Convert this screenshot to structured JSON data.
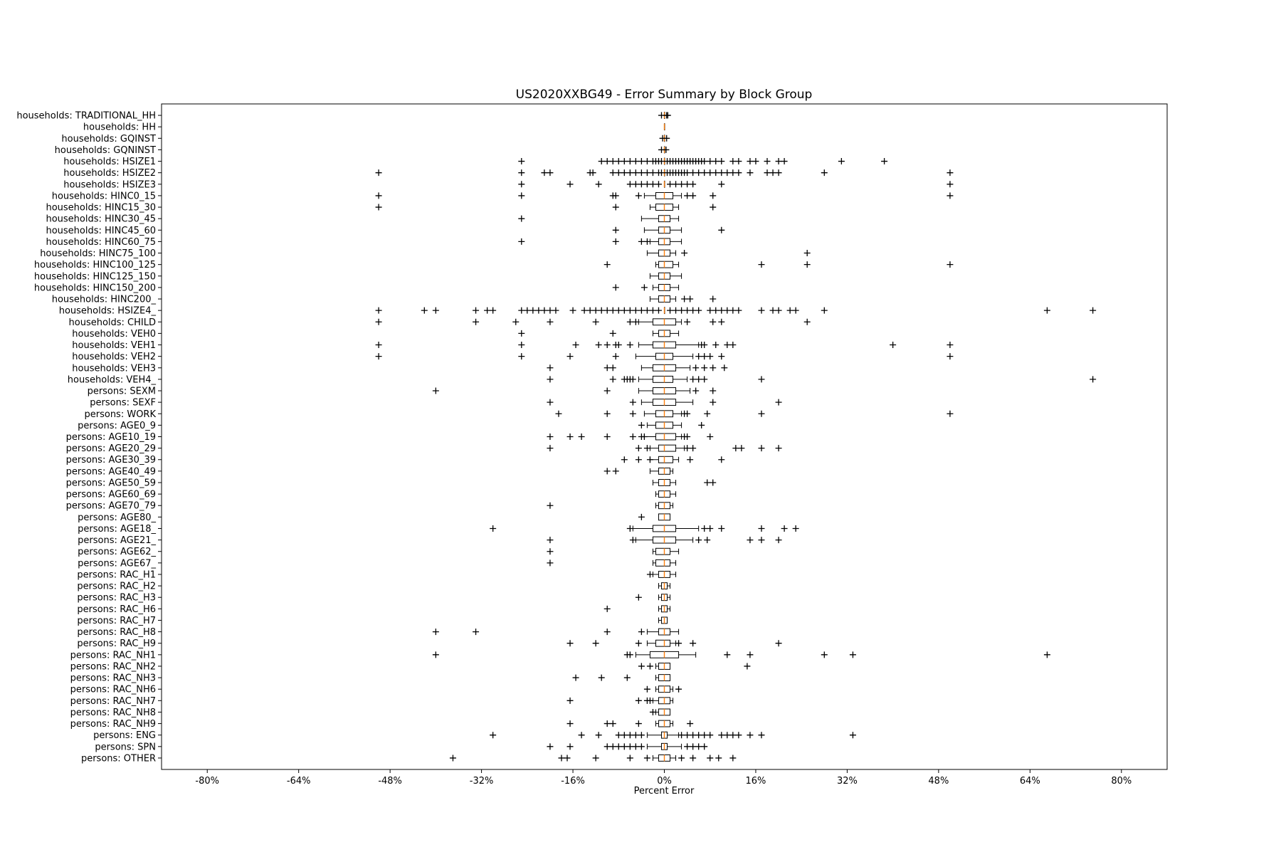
{
  "chart_data": {
    "type": "box",
    "title": "US2020XXBG49 - Error Summary by Block Group",
    "xlabel": "Percent Error",
    "ylabel": "",
    "xlim": [
      -88,
      88
    ],
    "xticks": [
      -80,
      -64,
      -48,
      -32,
      -16,
      0,
      16,
      32,
      48,
      64,
      80
    ],
    "xtick_labels": [
      "-80%",
      "-64%",
      "-48%",
      "-32%",
      "-16%",
      "0%",
      "16%",
      "32%",
      "48%",
      "64%",
      "80%"
    ],
    "grid": false,
    "median_color": "#ff7f0e",
    "categories": [
      "households: TRADITIONAL_HH",
      "households: HH",
      "households: GQINST",
      "households: GQNINST",
      "households: HSIZE1",
      "households: HSIZE2",
      "households: HSIZE3",
      "households: HINC0_15",
      "households: HINC15_30",
      "households: HINC30_45",
      "households: HINC45_60",
      "households: HINC60_75",
      "households: HINC75_100",
      "households: HINC100_125",
      "households: HINC125_150",
      "households: HINC150_200",
      "households: HINC200_",
      "households: HSIZE4_",
      "households: CHILD",
      "households: VEH0",
      "households: VEH1",
      "households: VEH2",
      "households: VEH3",
      "households: VEH4_",
      "persons: SEXM",
      "persons: SEXF",
      "persons: WORK",
      "persons: AGE0_9",
      "persons: AGE10_19",
      "persons: AGE20_29",
      "persons: AGE30_39",
      "persons: AGE40_49",
      "persons: AGE50_59",
      "persons: AGE60_69",
      "persons: AGE70_79",
      "persons: AGE80_",
      "persons: AGE18_",
      "persons: AGE21_",
      "persons: AGE62_",
      "persons: AGE67_",
      "persons: RAC_H1",
      "persons: RAC_H2",
      "persons: RAC_H3",
      "persons: RAC_H6",
      "persons: RAC_H7",
      "persons: RAC_H8",
      "persons: RAC_H9",
      "persons: RAC_NH1",
      "persons: RAC_NH2",
      "persons: RAC_NH3",
      "persons: RAC_NH6",
      "persons: RAC_NH7",
      "persons: RAC_NH8",
      "persons: RAC_NH9",
      "persons: ENG",
      "persons: SPN",
      "persons: OTHER"
    ],
    "boxes": [
      {
        "q1": 0,
        "median": 0,
        "q3": 0,
        "whisker_low": 0,
        "whisker_high": 0,
        "outliers": [
          -0.5,
          0.4,
          0.6
        ]
      },
      {
        "q1": 0,
        "median": 0,
        "q3": 0,
        "whisker_low": 0,
        "whisker_high": 0,
        "outliers": []
      },
      {
        "q1": 0,
        "median": 0,
        "q3": 0,
        "whisker_low": 0,
        "whisker_high": 0,
        "outliers": [
          -0.3,
          0.4
        ]
      },
      {
        "q1": 0,
        "median": 0,
        "q3": 0,
        "whisker_low": 0,
        "whisker_high": 0,
        "outliers": [
          -0.5,
          0.3
        ]
      },
      {
        "q1": 0,
        "median": 0,
        "q3": 0,
        "whisker_low": 0,
        "whisker_high": 0,
        "outliers": [
          -25,
          -11,
          -10,
          -9,
          -8,
          -7,
          -6,
          -5,
          -4,
          -3,
          -2,
          -1.5,
          -1,
          -0.5,
          0.5,
          1,
          1.5,
          2,
          2.5,
          3,
          3.5,
          4,
          4.5,
          5,
          5.5,
          6,
          6.5,
          7,
          8,
          9,
          10,
          12,
          13,
          15,
          16,
          18,
          20,
          21,
          31,
          38.5
        ]
      },
      {
        "q1": 0,
        "median": 0,
        "q3": 0,
        "whisker_low": 0,
        "whisker_high": 0,
        "outliers": [
          -50,
          -25,
          -21,
          -20,
          -13,
          -12.5,
          -9,
          -8,
          -7,
          -6,
          -5,
          -4,
          -3,
          -2,
          -1,
          -0.5,
          0.5,
          1,
          1.5,
          2,
          2.5,
          3,
          3.5,
          4,
          5,
          6,
          7,
          8,
          9,
          10,
          11,
          12,
          13,
          15,
          18,
          19,
          20,
          28,
          50
        ]
      },
      {
        "q1": 0,
        "median": 0,
        "q3": 0,
        "whisker_low": 0,
        "whisker_high": 0,
        "outliers": [
          -25,
          -16.5,
          -11.5,
          -6,
          -5,
          -4,
          -3,
          -2,
          -1,
          1,
          2,
          3,
          4,
          5,
          10,
          50
        ]
      },
      {
        "q1": -1.5,
        "median": 0,
        "q3": 1.5,
        "whisker_low": -3.5,
        "whisker_high": 3,
        "outliers": [
          -50,
          -25,
          -9,
          -8.5,
          -4.5,
          4,
          5,
          8.5,
          50
        ]
      },
      {
        "q1": -1.5,
        "median": 0,
        "q3": 1.5,
        "whisker_low": -2.5,
        "whisker_high": 2.5,
        "outliers": [
          -50,
          -8.5,
          8.5
        ]
      },
      {
        "q1": -1,
        "median": 0,
        "q3": 1,
        "whisker_low": -4,
        "whisker_high": 2.5,
        "outliers": [
          -25
        ]
      },
      {
        "q1": -1,
        "median": 0,
        "q3": 1,
        "whisker_low": -3.5,
        "whisker_high": 3,
        "outliers": [
          -8.5,
          10
        ]
      },
      {
        "q1": -1,
        "median": 0,
        "q3": 1,
        "whisker_low": -2.5,
        "whisker_high": 3,
        "outliers": [
          -25,
          -8.5,
          -4,
          -3
        ]
      },
      {
        "q1": -1,
        "median": 0,
        "q3": 1,
        "whisker_low": -3,
        "whisker_high": 2,
        "outliers": [
          3.5,
          25
        ]
      },
      {
        "q1": -1,
        "median": 0,
        "q3": 1.5,
        "whisker_low": -1.5,
        "whisker_high": 2.5,
        "outliers": [
          -10,
          17,
          25,
          50
        ]
      },
      {
        "q1": -1,
        "median": 0,
        "q3": 1,
        "whisker_low": -2.5,
        "whisker_high": 3,
        "outliers": []
      },
      {
        "q1": -1,
        "median": 0,
        "q3": 1,
        "whisker_low": -2,
        "whisker_high": 2.5,
        "outliers": [
          -8.5,
          -3.5
        ]
      },
      {
        "q1": -1,
        "median": 0,
        "q3": 1,
        "whisker_low": -2.5,
        "whisker_high": 2,
        "outliers": [
          3.5,
          4.5,
          8.5
        ]
      },
      {
        "q1": 0,
        "median": 0,
        "q3": 0,
        "whisker_low": 0,
        "whisker_high": 0,
        "outliers": [
          -50,
          -42,
          -40,
          -33,
          -31,
          -30,
          -25,
          -24,
          -23,
          -22,
          -21,
          -20,
          -19,
          -16,
          -14,
          -13,
          -12,
          -11,
          -10,
          -9,
          -8,
          -7,
          -6,
          -5,
          -4,
          -3,
          -2,
          -1,
          1,
          2,
          3,
          4,
          5,
          6,
          8,
          9,
          10,
          11,
          12,
          13,
          17,
          19,
          20,
          22,
          23,
          28,
          67,
          75
        ]
      },
      {
        "q1": -2,
        "median": 0,
        "q3": 2,
        "whisker_low": -4.5,
        "whisker_high": 3,
        "outliers": [
          -50,
          -33,
          -26,
          -20,
          -12,
          -6,
          -5,
          4,
          8.5,
          10,
          25
        ]
      },
      {
        "q1": -1,
        "median": 0,
        "q3": 1,
        "whisker_low": -2,
        "whisker_high": 2.5,
        "outliers": [
          -25,
          -9
        ]
      },
      {
        "q1": -2,
        "median": 0,
        "q3": 2,
        "whisker_low": -4.5,
        "whisker_high": 6,
        "outliers": [
          -50,
          -25,
          -15.5,
          -11.5,
          -10,
          -8.5,
          -8,
          -6,
          6.5,
          7,
          9,
          11,
          12,
          40,
          50
        ]
      },
      {
        "q1": -1.5,
        "median": 0,
        "q3": 1.5,
        "whisker_low": -5,
        "whisker_high": 5,
        "outliers": [
          -50,
          -25,
          -16.5,
          -8.5,
          6,
          7,
          8,
          10,
          50
        ]
      },
      {
        "q1": -2,
        "median": 0,
        "q3": 2,
        "whisker_low": -4,
        "whisker_high": 4.5,
        "outliers": [
          -20,
          -10,
          -9,
          5.5,
          7,
          8.5,
          10.5
        ]
      },
      {
        "q1": -2,
        "median": 0,
        "q3": 1.5,
        "whisker_low": -4.5,
        "whisker_high": 4,
        "outliers": [
          -20,
          -9,
          -7,
          -6.5,
          -6,
          -5.5,
          5,
          6,
          7,
          17,
          75
        ]
      },
      {
        "q1": -2,
        "median": 0,
        "q3": 2,
        "whisker_low": -4.5,
        "whisker_high": 4.5,
        "outliers": [
          -40,
          -10,
          5.5,
          8.5
        ]
      },
      {
        "q1": -2,
        "median": 0,
        "q3": 2,
        "whisker_low": -4,
        "whisker_high": 5,
        "outliers": [
          -20,
          -5.5,
          8.5,
          20
        ]
      },
      {
        "q1": -1.5,
        "median": 0,
        "q3": 1.5,
        "whisker_low": -3.5,
        "whisker_high": 3,
        "outliers": [
          -18.5,
          -10,
          -5.5,
          3.5,
          4,
          7.5,
          17,
          50
        ]
      },
      {
        "q1": -1.5,
        "median": 0,
        "q3": 1.5,
        "whisker_low": -3,
        "whisker_high": 3,
        "outliers": [
          -4,
          6.5
        ]
      },
      {
        "q1": -1.5,
        "median": 0,
        "q3": 2,
        "whisker_low": -3.5,
        "whisker_high": 3,
        "outliers": [
          -20,
          -16.5,
          -14.5,
          -10,
          -5.5,
          -4,
          -3.5,
          3.5,
          4,
          8
        ]
      },
      {
        "q1": -1,
        "median": 0,
        "q3": 2,
        "whisker_low": -2.5,
        "whisker_high": 3.5,
        "outliers": [
          -20,
          -4.5,
          -3,
          4,
          5,
          12.5,
          13.5,
          17,
          20
        ]
      },
      {
        "q1": -1,
        "median": 0,
        "q3": 1.5,
        "whisker_low": -2.5,
        "whisker_high": 2.5,
        "outliers": [
          -7,
          -4.5,
          -2.5,
          4.5,
          10
        ]
      },
      {
        "q1": -1,
        "median": 0,
        "q3": 1,
        "whisker_low": -2.5,
        "whisker_high": 1.5,
        "outliers": [
          -10,
          -8.5
        ]
      },
      {
        "q1": -1,
        "median": 0,
        "q3": 1,
        "whisker_low": -2,
        "whisker_high": 2,
        "outliers": [
          7.5,
          8.5
        ]
      },
      {
        "q1": -1,
        "median": 0,
        "q3": 1,
        "whisker_low": -1.5,
        "whisker_high": 2,
        "outliers": []
      },
      {
        "q1": -1,
        "median": 0,
        "q3": 1,
        "whisker_low": -1.5,
        "whisker_high": 1.5,
        "outliers": [
          -20
        ]
      },
      {
        "q1": -1,
        "median": 0,
        "q3": 1,
        "whisker_low": -1,
        "whisker_high": 1,
        "outliers": [
          -4
        ]
      },
      {
        "q1": -2,
        "median": 0,
        "q3": 2,
        "whisker_low": -5.5,
        "whisker_high": 6,
        "outliers": [
          -30,
          -6,
          7,
          8,
          10,
          17,
          21,
          23
        ]
      },
      {
        "q1": -2,
        "median": 0,
        "q3": 2,
        "whisker_low": -5,
        "whisker_high": 5,
        "outliers": [
          -20,
          -5.5,
          6,
          7.5,
          15,
          17,
          20
        ]
      },
      {
        "q1": -1.5,
        "median": 0,
        "q3": 1,
        "whisker_low": -2,
        "whisker_high": 2.5,
        "outliers": [
          -20
        ]
      },
      {
        "q1": -1.5,
        "median": 0,
        "q3": 1,
        "whisker_low": -2,
        "whisker_high": 2,
        "outliers": [
          -20
        ]
      },
      {
        "q1": -1,
        "median": 0,
        "q3": 1,
        "whisker_low": -2,
        "whisker_high": 2,
        "outliers": [
          -2.5
        ]
      },
      {
        "q1": -0.5,
        "median": 0,
        "q3": 0.5,
        "whisker_low": -1,
        "whisker_high": 1,
        "outliers": []
      },
      {
        "q1": -0.5,
        "median": 0,
        "q3": 0.5,
        "whisker_low": -1,
        "whisker_high": 1,
        "outliers": [
          -4.5
        ]
      },
      {
        "q1": -0.5,
        "median": 0,
        "q3": 0.5,
        "whisker_low": -1,
        "whisker_high": 1,
        "outliers": [
          -10
        ]
      },
      {
        "q1": -0.5,
        "median": 0,
        "q3": 0.5,
        "whisker_low": -1,
        "whisker_high": 0.5,
        "outliers": []
      },
      {
        "q1": -1,
        "median": 0,
        "q3": 1,
        "whisker_low": -3,
        "whisker_high": 2.5,
        "outliers": [
          -40,
          -33,
          -10,
          -4
        ]
      },
      {
        "q1": -1.5,
        "median": 0,
        "q3": 1,
        "whisker_low": -3,
        "whisker_high": 2,
        "outliers": [
          -16.5,
          -12,
          -4.5,
          2.5,
          5,
          20
        ]
      },
      {
        "q1": -2.5,
        "median": 0,
        "q3": 2.5,
        "whisker_low": -5,
        "whisker_high": 5.5,
        "outliers": [
          -40,
          -6.5,
          -6,
          11,
          15,
          28,
          33,
          67
        ]
      },
      {
        "q1": -1,
        "median": 0,
        "q3": 1,
        "whisker_low": -1.5,
        "whisker_high": 1,
        "outliers": [
          -4,
          -2.5,
          14.5
        ]
      },
      {
        "q1": -1,
        "median": 0,
        "q3": 1,
        "whisker_low": -1.5,
        "whisker_high": 1,
        "outliers": [
          -15.5,
          -11,
          -6.5
        ]
      },
      {
        "q1": -1,
        "median": 0,
        "q3": 1,
        "whisker_low": -1.5,
        "whisker_high": 1.5,
        "outliers": [
          -3,
          2.5
        ]
      },
      {
        "q1": -1,
        "median": 0,
        "q3": 1,
        "whisker_low": -2,
        "whisker_high": 1.5,
        "outliers": [
          -16.5,
          -4.5,
          -3,
          -2.5
        ]
      },
      {
        "q1": -1,
        "median": 0,
        "q3": 1,
        "whisker_low": -1.5,
        "whisker_high": 1,
        "outliers": [
          -2
        ]
      },
      {
        "q1": -1,
        "median": 0,
        "q3": 1,
        "whisker_low": -1.5,
        "whisker_high": 1.5,
        "outliers": [
          -16.5,
          -10,
          -9,
          -4.5,
          4.5
        ]
      },
      {
        "q1": -0.5,
        "median": 0,
        "q3": 0.5,
        "whisker_low": -3,
        "whisker_high": 2.5,
        "outliers": [
          -30,
          -14.5,
          -11.5,
          -8,
          -7,
          -6,
          -5,
          -4,
          3,
          4,
          5,
          6,
          7,
          8,
          10,
          11,
          12,
          13,
          15,
          17,
          33
        ]
      },
      {
        "q1": -0.5,
        "median": 0,
        "q3": 0.5,
        "whisker_low": -3,
        "whisker_high": 3,
        "outliers": [
          -20,
          -16.5,
          -10,
          -9,
          -8,
          -7,
          -6,
          -5,
          -4,
          4,
          5,
          6,
          7
        ]
      },
      {
        "q1": -1,
        "median": 0,
        "q3": 1,
        "whisker_low": -2,
        "whisker_high": 2,
        "outliers": [
          -37,
          -18,
          -17,
          -12,
          -6,
          -3,
          3,
          5,
          8,
          9.5,
          12
        ]
      }
    ]
  }
}
